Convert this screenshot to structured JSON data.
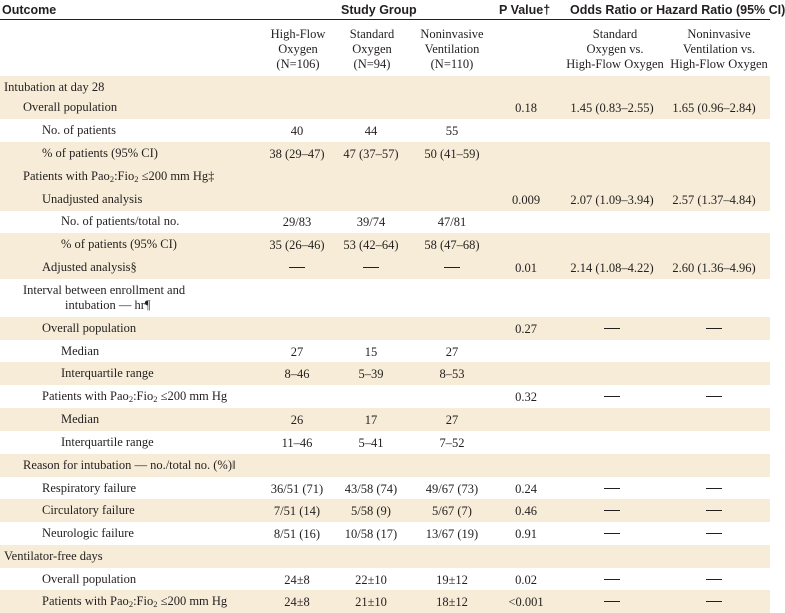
{
  "header": {
    "outcome": "Outcome",
    "study_group": "Study Group",
    "p_value": "P Value†",
    "ratio": "Odds Ratio or Hazard Ratio (95% CI)"
  },
  "columns": {
    "hfo": [
      "High-Flow",
      "Oxygen",
      "(N=106)"
    ],
    "std": [
      "Standard",
      "Oxygen",
      "(N=94)"
    ],
    "niv": [
      "Noninvasive",
      "Ventilation",
      "(N=110)"
    ],
    "r1": [
      "Standard",
      "Oxygen vs.",
      "High-Flow Oxygen"
    ],
    "r2": [
      "Noninvasive",
      "Ventilation vs.",
      "High-Flow Oxygen"
    ]
  },
  "rows": [
    {
      "label": "Intubation at day 28",
      "indent": 0,
      "hfo": "",
      "std": "",
      "niv": "",
      "p": "",
      "r1": "",
      "r2": ""
    },
    {
      "label": "Overall population",
      "indent": 1,
      "hfo": "",
      "std": "",
      "niv": "",
      "p": "0.18",
      "r1": "1.45 (0.83–2.55)",
      "r2": "1.65 (0.96–2.84)"
    },
    {
      "label": "No. of patients",
      "indent": 2,
      "hfo": "40",
      "std": "44",
      "niv": "55",
      "p": "",
      "r1": "",
      "r2": ""
    },
    {
      "label": "% of patients (95% CI)",
      "indent": 2,
      "hfo": "38 (29–47)",
      "std": "47 (37–57)",
      "niv": "50 (41–59)",
      "p": "",
      "r1": "",
      "r2": ""
    },
    {
      "label": "Patients with Pao₂:Fio₂ ≤200 mm Hg‡",
      "indent": 1,
      "hfo": "",
      "std": "",
      "niv": "",
      "p": "",
      "r1": "",
      "r2": ""
    },
    {
      "label": "Unadjusted analysis",
      "indent": 2,
      "hfo": "",
      "std": "",
      "niv": "",
      "p": "0.009",
      "r1": "2.07 (1.09–3.94)",
      "r2": "2.57 (1.37–4.84)"
    },
    {
      "label": "No. of patients/total no.",
      "indent": 3,
      "hfo": "29/83",
      "std": "39/74",
      "niv": "47/81",
      "p": "",
      "r1": "",
      "r2": ""
    },
    {
      "label": "% of patients (95% CI)",
      "indent": 3,
      "hfo": "35 (26–46)",
      "std": "53 (42–64)",
      "niv": "58 (47–68)",
      "p": "",
      "r1": "",
      "r2": ""
    },
    {
      "label": "Adjusted analysis§",
      "indent": 2,
      "hfo": "—",
      "std": "—",
      "niv": "—",
      "p": "0.01",
      "r1": "2.14 (1.08–4.22)",
      "r2": "2.60 (1.36–4.96)"
    },
    {
      "label": "Interval between enrollment and",
      "label2": "intubation — hr¶",
      "indent": 1,
      "hfo": "",
      "std": "",
      "niv": "",
      "p": "",
      "r1": "",
      "r2": ""
    },
    {
      "label": "Overall population",
      "indent": 2,
      "hfo": "",
      "std": "",
      "niv": "",
      "p": "0.27",
      "r1": "—",
      "r2": "—"
    },
    {
      "label": "Median",
      "indent": 3,
      "hfo": "27",
      "std": "15",
      "niv": "27",
      "p": "",
      "r1": "",
      "r2": ""
    },
    {
      "label": "Interquartile range",
      "indent": 3,
      "hfo": "8–46",
      "std": "5–39",
      "niv": "8–53",
      "p": "",
      "r1": "",
      "r2": ""
    },
    {
      "label": "Patients with Pao₂:Fio₂ ≤200 mm Hg",
      "indent": 2,
      "hfo": "",
      "std": "",
      "niv": "",
      "p": "0.32",
      "r1": "—",
      "r2": "—"
    },
    {
      "label": "Median",
      "indent": 3,
      "hfo": "26",
      "std": "17",
      "niv": "27",
      "p": "",
      "r1": "",
      "r2": ""
    },
    {
      "label": "Interquartile range",
      "indent": 3,
      "hfo": "11–46",
      "std": "5–41",
      "niv": "7–52",
      "p": "",
      "r1": "",
      "r2": ""
    },
    {
      "label": "Reason for intubation — no./total no. (%)‖",
      "indent": 1,
      "hfo": "",
      "std": "",
      "niv": "",
      "p": "",
      "r1": "",
      "r2": ""
    },
    {
      "label": "Respiratory failure",
      "indent": 2,
      "hfo": "36/51 (71)",
      "std": "43/58 (74)",
      "niv": "49/67 (73)",
      "p": "0.24",
      "r1": "—",
      "r2": "—"
    },
    {
      "label": "Circulatory failure",
      "indent": 2,
      "hfo": "7/51 (14)",
      "std": "5/58 (9)",
      "niv": "5/67 (7)",
      "p": "0.46",
      "r1": "—",
      "r2": "—"
    },
    {
      "label": "Neurologic failure",
      "indent": 2,
      "hfo": "8/51 (16)",
      "std": "10/58 (17)",
      "niv": "13/67 (19)",
      "p": "0.91",
      "r1": "—",
      "r2": "—"
    },
    {
      "label": "Ventilator-free days",
      "indent": 0,
      "hfo": "",
      "std": "",
      "niv": "",
      "p": "",
      "r1": "",
      "r2": ""
    },
    {
      "label": "Overall population",
      "indent": 2,
      "hfo": "24±8",
      "std": "22±10",
      "niv": "19±12",
      "p": "0.02",
      "r1": "—",
      "r2": "—"
    },
    {
      "label": "Patients with Pao₂:Fio₂ ≤200 mm Hg",
      "indent": 2,
      "hfo": "24±8",
      "std": "21±10",
      "niv": "18±12",
      "p": "<0.001",
      "r1": "—",
      "r2": "—"
    }
  ]
}
